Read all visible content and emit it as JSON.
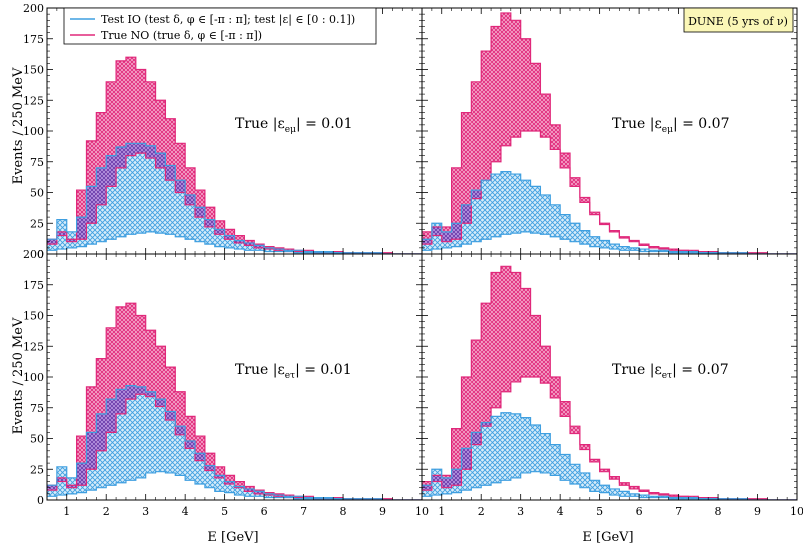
{
  "figure": {
    "ylabel": "Events / 250 MeV",
    "xlabel": "E [GeV]",
    "badge": "DUNE (5 yrs of ν)",
    "legend": [
      {
        "label": "Test IO (test δ, φ ∈ [-π : π]; test |ε| ∈ [0 : 0.1])",
        "color": "#3f9fe0"
      },
      {
        "label": "True NO (true δ, φ ∈ [-π : π])",
        "color": "#e0287a"
      }
    ],
    "colors": {
      "blue": "#3f9fe0",
      "pink": "#e0287a",
      "purple": "#6a3aa8"
    }
  },
  "chart_data": [
    {
      "type": "area",
      "panel": "top-left",
      "label": "True |εeμ| = 0.01",
      "label_main": "True |ε",
      "label_sub": "eμ",
      "label_end": "| = 0.01",
      "xlim": [
        0.5,
        10
      ],
      "ylim": [
        0,
        200
      ],
      "xticks": [
        1,
        2,
        3,
        4,
        5,
        6,
        7,
        8,
        9,
        10
      ],
      "yticks": [
        0,
        25,
        50,
        75,
        100,
        125,
        150,
        175,
        200
      ],
      "bin_width": 0.25,
      "x": [
        0.625,
        0.875,
        1.125,
        1.375,
        1.625,
        1.875,
        2.125,
        2.375,
        2.625,
        2.875,
        3.125,
        3.375,
        3.625,
        3.875,
        4.125,
        4.375,
        4.625,
        4.875,
        5.125,
        5.375,
        5.625,
        5.875,
        6.125,
        6.375,
        6.625,
        6.875,
        7.125,
        7.375,
        7.625,
        7.875,
        8.125,
        8.375,
        8.625,
        8.875,
        9.125,
        9.375,
        9.625,
        9.875
      ],
      "series": [
        {
          "name": "True NO",
          "kind": "band",
          "lower": [
            8,
            15,
            10,
            12,
            25,
            40,
            55,
            70,
            80,
            82,
            78,
            70,
            60,
            50,
            40,
            30,
            22,
            16,
            12,
            9,
            7,
            5,
            4,
            3,
            2,
            2,
            2,
            1,
            1,
            1,
            1,
            0,
            0,
            0,
            0,
            0,
            0,
            0
          ],
          "upper": [
            12,
            18,
            12,
            52,
            92,
            115,
            140,
            157,
            160,
            150,
            140,
            125,
            110,
            90,
            70,
            52,
            38,
            27,
            20,
            15,
            11,
            8,
            6,
            5,
            4,
            3,
            3,
            2,
            2,
            2,
            1,
            1,
            1,
            1,
            1,
            0,
            0,
            0
          ]
        },
        {
          "name": "Test IO",
          "kind": "band",
          "lower": [
            3,
            4,
            5,
            6,
            8,
            10,
            12,
            14,
            16,
            17,
            18,
            17,
            16,
            14,
            12,
            10,
            8,
            6,
            5,
            4,
            3,
            3,
            2,
            2,
            2,
            1,
            1,
            1,
            1,
            1,
            0,
            0,
            0,
            0,
            0,
            0,
            0,
            0
          ],
          "upper": [
            12,
            28,
            18,
            30,
            55,
            70,
            80,
            87,
            90,
            90,
            88,
            82,
            72,
            60,
            48,
            38,
            28,
            20,
            15,
            11,
            9,
            7,
            5,
            4,
            3,
            3,
            2,
            2,
            2,
            1,
            1,
            1,
            1,
            1,
            0,
            0,
            0,
            0
          ]
        }
      ]
    },
    {
      "type": "area",
      "panel": "top-right",
      "label": "True |εeμ| = 0.07",
      "label_main": "True |ε",
      "label_sub": "eμ",
      "label_end": "| = 0.07",
      "xlim": [
        0.5,
        10
      ],
      "ylim": [
        0,
        200
      ],
      "xticks": [
        1,
        2,
        3,
        4,
        5,
        6,
        7,
        8,
        9,
        10
      ],
      "yticks": [
        0,
        25,
        50,
        75,
        100,
        125,
        150,
        175,
        200
      ],
      "bin_width": 0.25,
      "x": [
        0.625,
        0.875,
        1.125,
        1.375,
        1.625,
        1.875,
        2.125,
        2.375,
        2.625,
        2.875,
        3.125,
        3.375,
        3.625,
        3.875,
        4.125,
        4.375,
        4.625,
        4.875,
        5.125,
        5.375,
        5.625,
        5.875,
        6.125,
        6.375,
        6.625,
        6.875,
        7.125,
        7.375,
        7.625,
        7.875,
        8.125,
        8.375,
        8.625,
        8.875,
        9.125,
        9.375,
        9.625,
        9.875
      ],
      "series": [
        {
          "name": "True NO",
          "kind": "band",
          "lower": [
            8,
            15,
            10,
            12,
            25,
            45,
            60,
            75,
            88,
            95,
            100,
            100,
            95,
            85,
            70,
            55,
            42,
            32,
            24,
            18,
            13,
            10,
            7,
            5,
            4,
            3,
            3,
            2,
            2,
            1,
            1,
            1,
            0,
            0,
            0,
            0,
            0,
            0
          ],
          "upper": [
            18,
            22,
            22,
            70,
            115,
            140,
            165,
            185,
            196,
            190,
            175,
            155,
            130,
            105,
            82,
            62,
            46,
            34,
            25,
            19,
            14,
            11,
            8,
            6,
            5,
            4,
            3,
            3,
            2,
            2,
            1,
            1,
            1,
            1,
            1,
            0,
            0,
            0
          ]
        },
        {
          "name": "Test IO",
          "kind": "band",
          "lower": [
            3,
            4,
            5,
            6,
            8,
            10,
            12,
            14,
            16,
            17,
            18,
            17,
            16,
            14,
            12,
            10,
            8,
            6,
            5,
            4,
            3,
            3,
            2,
            2,
            2,
            1,
            1,
            1,
            1,
            1,
            0,
            0,
            0,
            0,
            0,
            0,
            0,
            0
          ],
          "upper": [
            12,
            25,
            18,
            25,
            40,
            52,
            60,
            65,
            67,
            65,
            60,
            55,
            48,
            40,
            32,
            25,
            19,
            14,
            11,
            8,
            6,
            5,
            4,
            3,
            3,
            2,
            2,
            2,
            1,
            1,
            1,
            1,
            1,
            0,
            0,
            0,
            0,
            0
          ]
        }
      ]
    },
    {
      "type": "area",
      "panel": "bottom-left",
      "label": "True |εeτ| = 0.01",
      "label_main": "True |ε",
      "label_sub": "eτ",
      "label_end": "| = 0.01",
      "xlim": [
        0.5,
        10
      ],
      "ylim": [
        0,
        200
      ],
      "xticks": [
        1,
        2,
        3,
        4,
        5,
        6,
        7,
        8,
        9,
        10
      ],
      "yticks": [
        0,
        25,
        50,
        75,
        100,
        125,
        150,
        175,
        200
      ],
      "bin_width": 0.25,
      "x": [
        0.625,
        0.875,
        1.125,
        1.375,
        1.625,
        1.875,
        2.125,
        2.375,
        2.625,
        2.875,
        3.125,
        3.375,
        3.625,
        3.875,
        4.125,
        4.375,
        4.625,
        4.875,
        5.125,
        5.375,
        5.625,
        5.875,
        6.125,
        6.375,
        6.625,
        6.875,
        7.125,
        7.375,
        7.625,
        7.875,
        8.125,
        8.375,
        8.625,
        8.875,
        9.125,
        9.375,
        9.625,
        9.875
      ],
      "series": [
        {
          "name": "True NO",
          "kind": "band",
          "lower": [
            8,
            15,
            10,
            12,
            25,
            40,
            55,
            70,
            82,
            86,
            84,
            76,
            65,
            53,
            42,
            32,
            24,
            18,
            13,
            10,
            7,
            5,
            4,
            3,
            2,
            2,
            2,
            1,
            1,
            1,
            1,
            0,
            0,
            0,
            0,
            0,
            0,
            0
          ],
          "upper": [
            12,
            18,
            12,
            52,
            92,
            115,
            140,
            157,
            160,
            150,
            138,
            125,
            108,
            88,
            68,
            52,
            38,
            27,
            20,
            15,
            11,
            8,
            6,
            5,
            4,
            3,
            3,
            2,
            2,
            2,
            1,
            1,
            1,
            1,
            1,
            0,
            0,
            0
          ]
        },
        {
          "name": "Test IO",
          "kind": "band",
          "lower": [
            3,
            4,
            5,
            6,
            8,
            10,
            12,
            14,
            16,
            18,
            22,
            23,
            22,
            20,
            16,
            13,
            10,
            7,
            6,
            4,
            3,
            3,
            2,
            2,
            2,
            1,
            1,
            1,
            1,
            1,
            0,
            0,
            0,
            0,
            0,
            0,
            0,
            0
          ],
          "upper": [
            12,
            27,
            18,
            30,
            55,
            70,
            82,
            90,
            93,
            92,
            88,
            82,
            72,
            60,
            48,
            38,
            28,
            20,
            15,
            11,
            9,
            7,
            5,
            4,
            3,
            3,
            2,
            2,
            2,
            1,
            1,
            1,
            1,
            1,
            0,
            0,
            0,
            0
          ]
        }
      ]
    },
    {
      "type": "area",
      "panel": "bottom-right",
      "label": "True |εeτ| = 0.07",
      "label_main": "True |ε",
      "label_sub": "eτ",
      "label_end": "| = 0.07",
      "xlim": [
        0.5,
        10
      ],
      "ylim": [
        0,
        200
      ],
      "xticks": [
        1,
        2,
        3,
        4,
        5,
        6,
        7,
        8,
        9,
        10
      ],
      "yticks": [
        0,
        25,
        50,
        75,
        100,
        125,
        150,
        175,
        200
      ],
      "bin_width": 0.25,
      "x": [
        0.625,
        0.875,
        1.125,
        1.375,
        1.625,
        1.875,
        2.125,
        2.375,
        2.625,
        2.875,
        3.125,
        3.375,
        3.625,
        3.875,
        4.125,
        4.375,
        4.625,
        4.875,
        5.125,
        5.375,
        5.625,
        5.875,
        6.125,
        6.375,
        6.625,
        6.875,
        7.125,
        7.375,
        7.625,
        7.875,
        8.125,
        8.375,
        8.625,
        8.875,
        9.125,
        9.375,
        9.625,
        9.875
      ],
      "series": [
        {
          "name": "True NO",
          "kind": "band",
          "lower": [
            8,
            15,
            10,
            12,
            25,
            45,
            60,
            75,
            88,
            96,
            100,
            100,
            95,
            83,
            68,
            54,
            41,
            31,
            23,
            17,
            12,
            9,
            7,
            5,
            4,
            3,
            3,
            2,
            2,
            1,
            1,
            1,
            0,
            0,
            0,
            0,
            0,
            0
          ],
          "upper": [
            15,
            20,
            20,
            58,
            100,
            130,
            160,
            185,
            190,
            185,
            172,
            150,
            125,
            100,
            80,
            60,
            45,
            33,
            25,
            19,
            14,
            11,
            8,
            6,
            5,
            4,
            3,
            3,
            2,
            2,
            1,
            1,
            1,
            1,
            1,
            0,
            0,
            0
          ]
        },
        {
          "name": "Test IO",
          "kind": "band",
          "lower": [
            3,
            4,
            5,
            6,
            8,
            10,
            12,
            14,
            16,
            18,
            22,
            23,
            22,
            20,
            16,
            13,
            10,
            7,
            6,
            4,
            3,
            3,
            2,
            2,
            2,
            1,
            1,
            1,
            1,
            1,
            0,
            0,
            0,
            0,
            0,
            0,
            0,
            0
          ],
          "upper": [
            12,
            25,
            18,
            25,
            42,
            55,
            63,
            68,
            71,
            70,
            67,
            61,
            54,
            45,
            37,
            29,
            22,
            16,
            12,
            9,
            7,
            5,
            4,
            3,
            3,
            2,
            2,
            2,
            1,
            1,
            1,
            1,
            1,
            0,
            0,
            0,
            0,
            0
          ]
        }
      ]
    }
  ]
}
